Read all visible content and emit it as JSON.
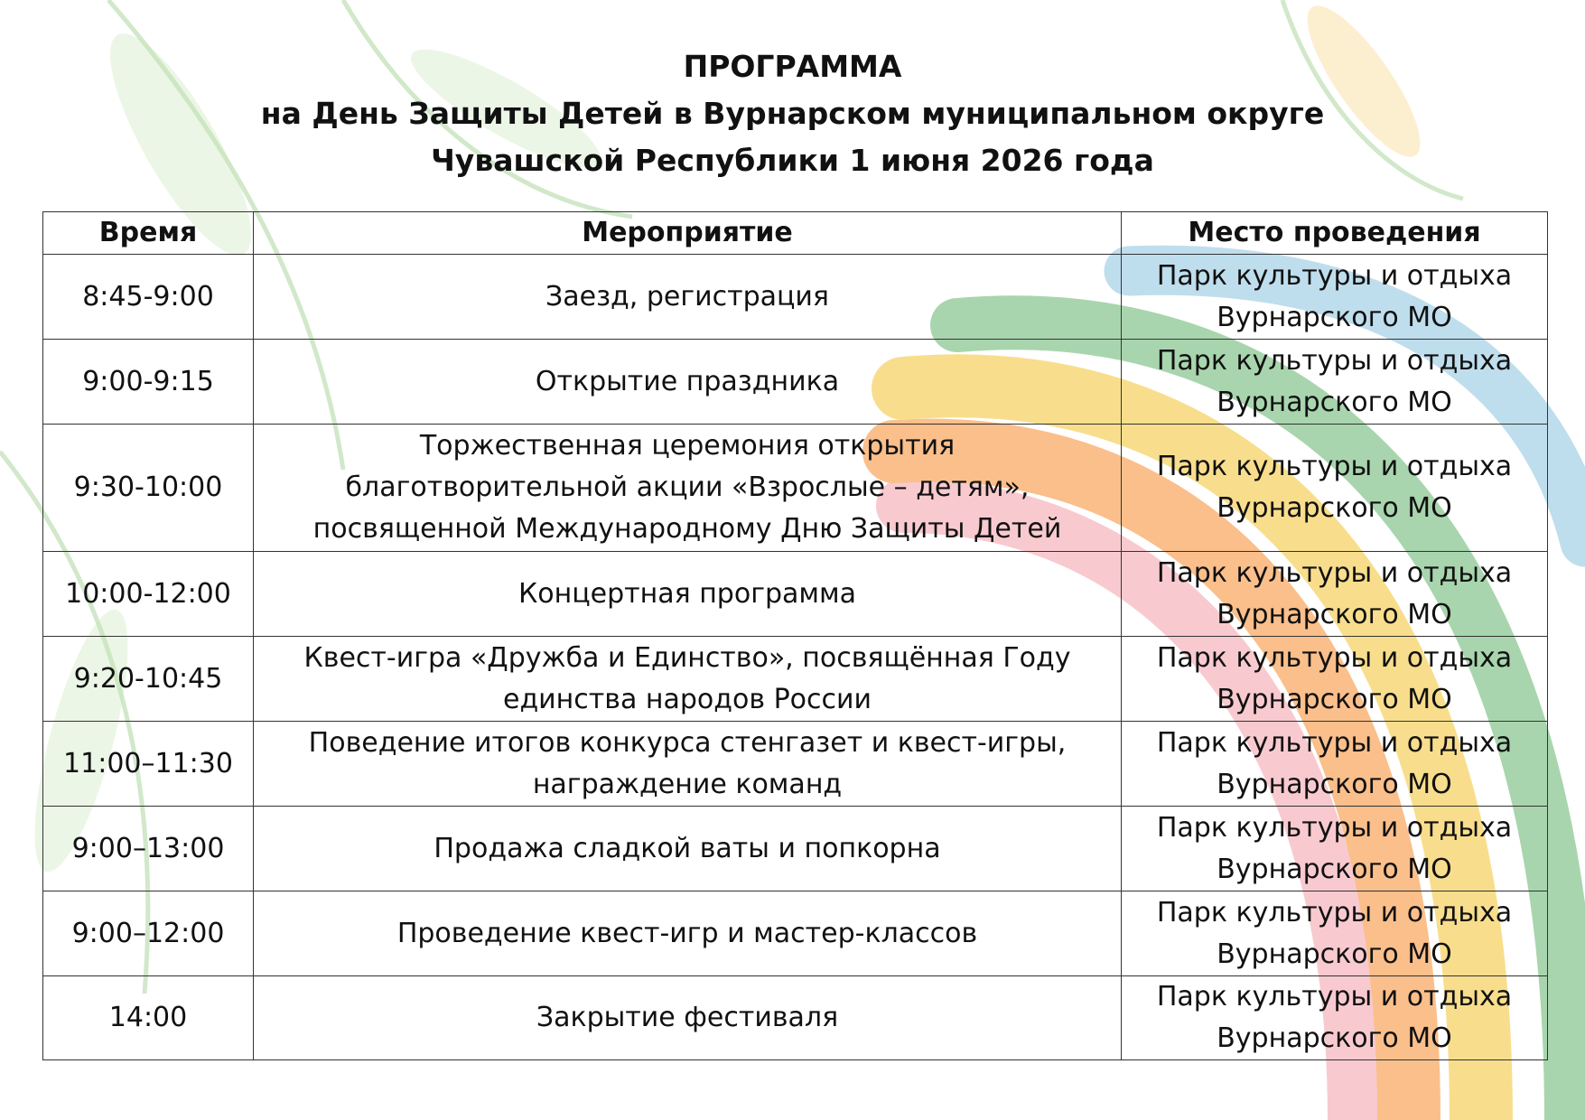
{
  "header": {
    "title": [
      "ПРОГРАММА",
      "на День Защиты Детей в Вурнарском муниципальном округе",
      "Чувашской Республики 1 июня 2026 года"
    ]
  },
  "table": {
    "columns": [
      "Время",
      "Мероприятие",
      "Место проведения"
    ],
    "rows": [
      {
        "time": "8:45-9:00",
        "event": [
          "Заезд, регистрация"
        ],
        "place": [
          "Парк культуры и отдыха",
          "Вурнарского МО"
        ]
      },
      {
        "time": "9:00-9:15",
        "event": [
          "Открытие праздника"
        ],
        "place": [
          "Парк культуры и отдыха",
          "Вурнарского МО"
        ]
      },
      {
        "time": "9:30-10:00",
        "event": [
          "Торжественная церемония открытия",
          "благотворительной акции «Взрослые – детям»,",
          "посвященной Международному Дню Защиты Детей"
        ],
        "place": [
          "Парк культуры и отдыха",
          "Вурнарского МО"
        ]
      },
      {
        "time": "10:00-12:00",
        "event": [
          "Концертная программа"
        ],
        "place": [
          "Парк культуры и отдыха",
          "Вурнарского МО"
        ]
      },
      {
        "time": "9:20-10:45",
        "event": [
          "Квест-игра «Дружба и Единство», посвящённая Году",
          "единства народов России"
        ],
        "place": [
          "Парк культуры и отдыха",
          "Вурнарского МО"
        ]
      },
      {
        "time": "11:00–11:30",
        "event": [
          "Поведение итогов конкурса стенгазет и квест-игры,",
          "награждение команд"
        ],
        "place": [
          "Парк культуры и отдыха",
          "Вурнарского МО"
        ]
      },
      {
        "time": "9:00–13:00",
        "event": [
          "Продажа сладкой ваты и попкорна"
        ],
        "place": [
          "Парк культуры и отдыха",
          "Вурнарского МО"
        ]
      },
      {
        "time": "9:00–12:00",
        "event": [
          "Проведение квест-игр и мастер-классов"
        ],
        "place": [
          "Парк культуры и отдыха",
          "Вурнарского МО"
        ]
      },
      {
        "time": "14:00",
        "event": [
          "Закрытие фестиваля"
        ],
        "place": [
          "Парк культуры и отдыха",
          "Вурнарского МО"
        ]
      }
    ]
  }
}
